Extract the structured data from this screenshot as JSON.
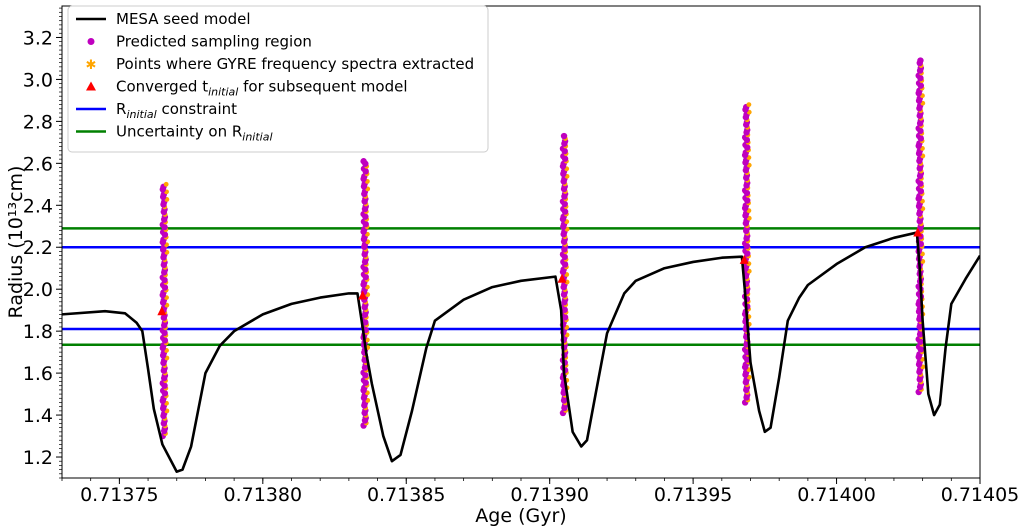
{
  "chart_data": {
    "type": "line",
    "title": "",
    "xlabel": "Age (Gyr)",
    "ylabel": "Radius (10¹³cm)",
    "xlim": [
      0.71373,
      0.71405
    ],
    "ylim": [
      1.1,
      3.35
    ],
    "xticks": [
      0.71375,
      0.7138,
      0.71385,
      0.7139,
      0.71395,
      0.714,
      0.71405
    ],
    "xtick_labels": [
      "0.71375",
      "0.71380",
      "0.71385",
      "0.71390",
      "0.71395",
      "0.71400",
      "0.71405"
    ],
    "yticks": [
      1.2,
      1.4,
      1.6,
      1.8,
      2.0,
      2.2,
      2.4,
      2.6,
      2.8,
      3.0,
      3.2
    ],
    "ytick_labels": [
      "1.2",
      "1.4",
      "1.6",
      "1.8",
      "2.0",
      "2.2",
      "2.4",
      "2.6",
      "2.8",
      "3.0",
      "3.2"
    ],
    "legend_position": "top-left",
    "legend": [
      {
        "label": "MESA seed model",
        "kind": "line",
        "color": "#000000"
      },
      {
        "label": "Predicted sampling region",
        "kind": "dot",
        "color": "#bf00bf"
      },
      {
        "label": "Points where GYRE frequency spectra extracted",
        "kind": "star",
        "color": "#ffa500"
      },
      {
        "label": "Converged t",
        "sub": "initial",
        "after": " for subsequent model",
        "kind": "triangle",
        "color": "#ff0000"
      },
      {
        "label": "R",
        "sub": "initial",
        "after": " constraint",
        "kind": "line",
        "color": "#0000ff"
      },
      {
        "label": "Uncertainty on R",
        "sub": "initial",
        "after": "",
        "kind": "line",
        "color": "#008000"
      }
    ],
    "hlines": [
      {
        "name": "R_initial constraint",
        "values": [
          1.81,
          2.2
        ],
        "color": "#0000ff"
      },
      {
        "name": "Uncertainty on R_initial",
        "values": [
          1.735,
          2.29
        ],
        "color": "#008000"
      }
    ],
    "series": [
      {
        "name": "MESA seed model",
        "color": "#000000",
        "x": [
          0.71373,
          0.713745,
          0.713752,
          0.713756,
          0.713758,
          0.71376,
          0.713762,
          0.713765,
          0.71377,
          0.713772,
          0.713775,
          0.71378,
          0.713785,
          0.71379,
          0.7138,
          0.71381,
          0.71382,
          0.71383,
          0.713833,
          0.713835,
          0.713836,
          0.713838,
          0.713842,
          0.713845,
          0.713848,
          0.713852,
          0.713857,
          0.71386,
          0.71387,
          0.71388,
          0.71389,
          0.713902,
          0.713904,
          0.713905,
          0.713908,
          0.713911,
          0.713913,
          0.713916,
          0.71392,
          0.713926,
          0.71393,
          0.71394,
          0.71395,
          0.71396,
          0.713967,
          0.713968,
          0.71397,
          0.713973,
          0.713975,
          0.713977,
          0.71398,
          0.713983,
          0.713987,
          0.71399,
          0.714,
          0.71401,
          0.71402,
          0.714028,
          0.714029,
          0.71403,
          0.714032,
          0.714034,
          0.714036,
          0.714038,
          0.71404,
          0.714045,
          0.71405
        ],
        "y": [
          1.88,
          1.895,
          1.885,
          1.84,
          1.8,
          1.62,
          1.43,
          1.26,
          1.13,
          1.14,
          1.25,
          1.6,
          1.73,
          1.8,
          1.88,
          1.93,
          1.96,
          1.98,
          1.98,
          1.8,
          1.7,
          1.55,
          1.3,
          1.18,
          1.21,
          1.42,
          1.72,
          1.85,
          1.95,
          2.01,
          2.04,
          2.06,
          1.9,
          1.6,
          1.32,
          1.25,
          1.28,
          1.5,
          1.79,
          1.98,
          2.04,
          2.1,
          2.13,
          2.15,
          2.155,
          2.0,
          1.65,
          1.42,
          1.32,
          1.34,
          1.58,
          1.85,
          1.96,
          2.02,
          2.12,
          2.2,
          2.245,
          2.27,
          2.1,
          1.85,
          1.5,
          1.4,
          1.45,
          1.72,
          1.93,
          2.05,
          2.16
        ]
      }
    ],
    "vertical_scans": [
      {
        "x": 0.7137655,
        "y_min": 1.3,
        "y_max": 2.5,
        "converged_y": 1.895
      },
      {
        "x": 0.7138355,
        "y_min": 1.35,
        "y_max": 2.61,
        "converged_y": 1.97
      },
      {
        "x": 0.713905,
        "y_min": 1.41,
        "y_max": 2.73,
        "converged_y": 2.05
      },
      {
        "x": 0.7139685,
        "y_min": 1.46,
        "y_max": 2.88,
        "converged_y": 2.14
      },
      {
        "x": 0.714029,
        "y_min": 1.51,
        "y_max": 3.09,
        "converged_y": 2.27
      }
    ]
  }
}
